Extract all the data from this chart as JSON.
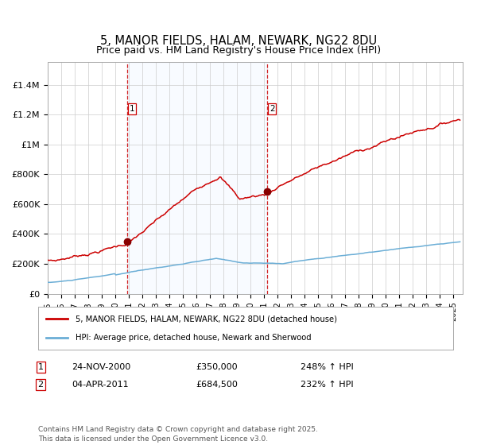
{
  "title": "5, MANOR FIELDS, HALAM, NEWARK, NG22 8DU",
  "subtitle": "Price paid vs. HM Land Registry's House Price Index (HPI)",
  "title_fontsize": 10.5,
  "background_color": "#ffffff",
  "plot_bg_color": "#ffffff",
  "grid_color": "#cccccc",
  "hpi_line_color": "#6baed6",
  "property_line_color": "#cc0000",
  "shade_color": "#ddeeff",
  "dashed_line_color": "#cc0000",
  "marker_color": "#880000",
  "legend_label_property": "5, MANOR FIELDS, HALAM, NEWARK, NG22 8DU (detached house)",
  "legend_label_hpi": "HPI: Average price, detached house, Newark and Sherwood",
  "event1_date": "24-NOV-2000",
  "event1_price": "£350,000",
  "event1_pct": "248% ↑ HPI",
  "event1_x": 2000.9,
  "event1_y": 350000,
  "event2_date": "04-APR-2011",
  "event2_price": "£684,500",
  "event2_pct": "232% ↑ HPI",
  "event2_x": 2011.25,
  "event2_y": 684500,
  "shade_x1": 2000.9,
  "shade_x2": 2011.25,
  "xmin": 1995.0,
  "xmax": 2025.7,
  "ymin": 0,
  "ymax": 1550000,
  "yticks": [
    0,
    200000,
    400000,
    600000,
    800000,
    1000000,
    1200000,
    1400000
  ],
  "ytick_labels": [
    "£0",
    "£200K",
    "£400K",
    "£600K",
    "£800K",
    "£1M",
    "£1.2M",
    "£1.4M"
  ],
  "xtick_years": [
    1995,
    1996,
    1997,
    1998,
    1999,
    2000,
    2001,
    2002,
    2003,
    2004,
    2005,
    2006,
    2007,
    2008,
    2009,
    2010,
    2011,
    2012,
    2013,
    2014,
    2015,
    2016,
    2017,
    2018,
    2019,
    2020,
    2021,
    2022,
    2023,
    2024,
    2025
  ],
  "footer": "Contains HM Land Registry data © Crown copyright and database right 2025.\nThis data is licensed under the Open Government Licence v3.0.",
  "footer_fontsize": 6.5
}
